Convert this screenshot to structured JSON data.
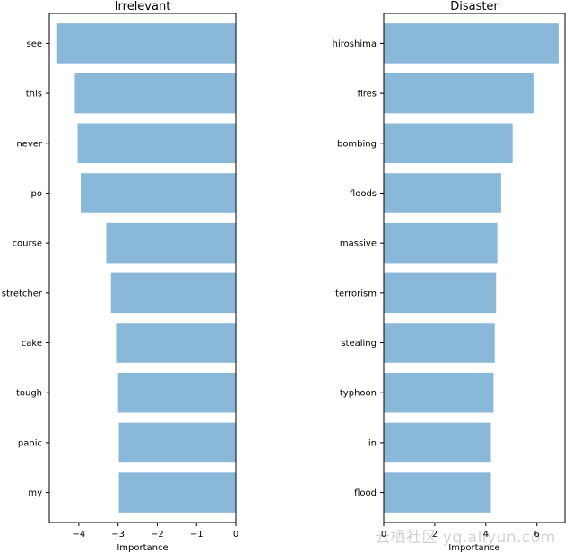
{
  "chart_data": [
    {
      "type": "bar",
      "orientation": "horizontal",
      "title": "Irrelevant",
      "xlabel": "Importance",
      "ylabel": "",
      "categories": [
        "see",
        "this",
        "never",
        "po",
        "course",
        "stretcher",
        "cake",
        "tough",
        "panic",
        "my"
      ],
      "values": [
        -4.55,
        -4.1,
        -4.03,
        -3.95,
        -3.3,
        -3.18,
        -3.05,
        -3.0,
        -2.98,
        -2.98
      ],
      "xlim": [
        -4.75,
        0
      ],
      "xticks": [
        "−4",
        "−3",
        "−2",
        "−1",
        "0"
      ],
      "xtick_values": [
        -4,
        -3,
        -2,
        -1,
        0
      ],
      "bar_color": "#8ab8d9",
      "grid": false
    },
    {
      "type": "bar",
      "orientation": "horizontal",
      "title": "Disaster",
      "xlabel": "Importance",
      "ylabel": "",
      "categories": [
        "hiroshima",
        "fires",
        "bombing",
        "floods",
        "massive",
        "terrorism",
        "stealing",
        "typhoon",
        "in",
        "flood"
      ],
      "values": [
        6.85,
        5.9,
        5.05,
        4.6,
        4.45,
        4.4,
        4.35,
        4.3,
        4.2,
        4.2
      ],
      "xlim": [
        0,
        7.1
      ],
      "xticks": [
        "0",
        "2",
        "4",
        "6"
      ],
      "xtick_values": [
        0,
        2,
        4,
        6
      ],
      "bar_color": "#8ab8d9",
      "grid": false
    }
  ],
  "watermark": "云栖社区 yq.aliyun.com"
}
